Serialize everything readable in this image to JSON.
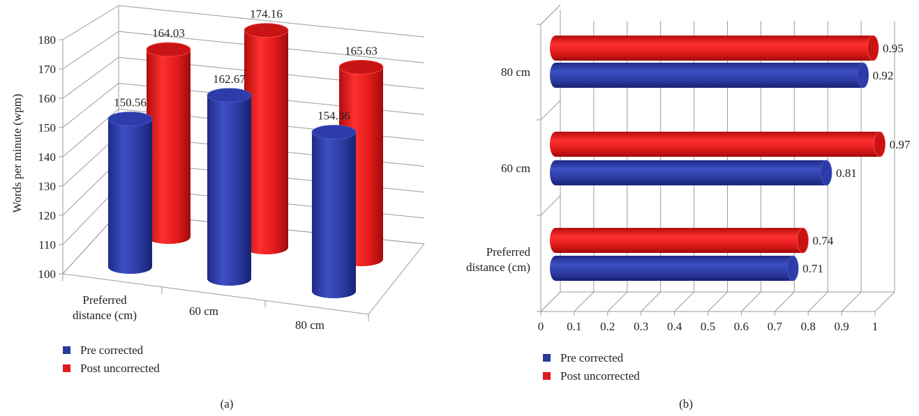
{
  "chart_data": [
    {
      "type": "bar",
      "orientation": "vertical",
      "style": "3d-cylinder",
      "panel_label": "(a)",
      "ylabel": "Words per minute (wpm)",
      "ylim": [
        100,
        180
      ],
      "yticks": [
        "100",
        "110",
        "120",
        "130",
        "140",
        "150",
        "160",
        "170",
        "180"
      ],
      "categories": [
        "Preferred distance (cm)",
        "60 cm",
        "80 cm"
      ],
      "category_lines": [
        [
          "Preferred",
          "distance (cm)"
        ],
        [
          "60 cm"
        ],
        [
          "80 cm"
        ]
      ],
      "series": [
        {
          "name": "Pre corrected",
          "color": "#2b3a9e",
          "values": [
            150.56,
            162.67,
            154.36
          ],
          "labels": [
            "150.56",
            "162.67",
            "154.36"
          ]
        },
        {
          "name": "Post uncorrected",
          "color": "#e01b1b",
          "values": [
            164.03,
            174.16,
            165.63
          ],
          "labels": [
            "164.03",
            "174.16",
            "165.63"
          ]
        }
      ],
      "grid": true,
      "legend_position": "bottom-left"
    },
    {
      "type": "bar",
      "orientation": "horizontal",
      "style": "3d-cylinder",
      "panel_label": "(b)",
      "xlim": [
        0,
        1
      ],
      "xticks": [
        "0",
        "0.1",
        "0.2",
        "0.3",
        "0.4",
        "0.5",
        "0.6",
        "0.7",
        "0.8",
        "0.9",
        "1"
      ],
      "categories": [
        "Preferred distance (cm)",
        "60 cm",
        "80 cm"
      ],
      "category_lines": [
        [
          "Preferred",
          "distance (cm)"
        ],
        [
          "60 cm"
        ],
        [
          "80 cm"
        ]
      ],
      "series": [
        {
          "name": "Pre corrected",
          "color": "#2b3a9e",
          "values": [
            0.71,
            0.81,
            0.92
          ],
          "labels": [
            "0.71",
            "0.81",
            "0.92"
          ]
        },
        {
          "name": "Post uncorrected",
          "color": "#e01b1b",
          "values": [
            0.74,
            0.97,
            0.95
          ],
          "labels": [
            "0.74",
            "0.97",
            "0.95"
          ]
        }
      ],
      "grid": true,
      "legend_position": "bottom-left"
    }
  ]
}
